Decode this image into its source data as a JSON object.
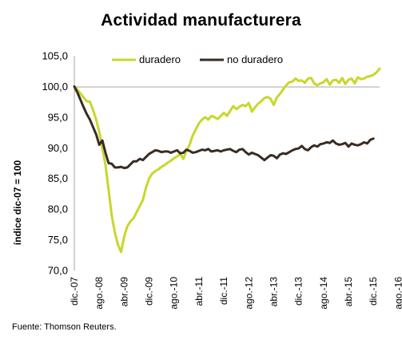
{
  "chart_data": {
    "type": "line",
    "title": "Actividad manufacturera",
    "ylabel": "índice dic-07 = 100",
    "ylim": [
      70,
      105
    ],
    "yticks": [
      "70,0",
      "75,0",
      "80,0",
      "85,0",
      "90,0",
      "95,0",
      "100,0",
      "105,0"
    ],
    "xticks": [
      "dic.-07",
      "ago.-08",
      "abr.-09",
      "dic.-09",
      "ago.-10",
      "abr.-11",
      "dic.-11",
      "ago.-12",
      "abr.-13",
      "dic.-13",
      "ago.-14",
      "abr.-15",
      "dic.-15",
      "ago.-16"
    ],
    "legend_position": "top",
    "series": [
      {
        "name": "duradero",
        "color": "#c8d72a",
        "values": [
          100.0,
          99.5,
          98.8,
          98.2,
          97.6,
          97.5,
          96.2,
          94.6,
          92.6,
          90.0,
          87.2,
          83.2,
          79.0,
          76.2,
          74.2,
          73.0,
          75.5,
          77.2,
          78.0,
          78.5,
          79.5,
          80.5,
          81.5,
          83.5,
          85.0,
          85.8,
          86.2,
          86.5,
          86.9,
          87.2,
          87.6,
          87.9,
          88.3,
          88.6,
          89.0,
          88.2,
          89.5,
          90.5,
          92.0,
          93.0,
          94.0,
          94.6,
          95.0,
          94.6,
          95.2,
          95.0,
          94.7,
          95.2,
          95.7,
          95.2,
          96.0,
          96.8,
          96.3,
          96.7,
          97.0,
          96.8,
          97.3,
          95.9,
          96.6,
          97.2,
          97.6,
          98.1,
          98.3,
          98.0,
          97.0,
          98.2,
          98.8,
          99.5,
          100.2,
          100.7,
          100.8,
          101.3,
          100.9,
          101.0,
          100.6,
          101.3,
          101.4,
          100.5,
          100.2,
          100.5,
          100.7,
          101.2,
          100.3,
          101.0,
          101.1,
          100.6,
          101.4,
          100.4,
          101.1,
          101.3,
          100.5,
          101.5,
          101.2,
          101.3,
          101.6,
          101.7,
          101.9,
          102.3,
          102.9
        ]
      },
      {
        "name": "no duradero",
        "color": "#3a2c22",
        "values": [
          100.0,
          99.0,
          97.8,
          96.6,
          95.5,
          94.6,
          93.4,
          92.2,
          90.5,
          91.2,
          89.2,
          87.5,
          87.4,
          86.8,
          86.8,
          86.9,
          86.7,
          86.8,
          87.3,
          87.8,
          87.8,
          88.2,
          88.0,
          88.5,
          89.0,
          89.3,
          89.6,
          89.5,
          89.3,
          89.4,
          89.4,
          89.2,
          89.4,
          89.6,
          89.1,
          89.2,
          89.7,
          89.5,
          89.2,
          89.3,
          89.5,
          89.7,
          89.6,
          89.8,
          89.4,
          89.5,
          89.6,
          89.4,
          89.6,
          89.7,
          89.8,
          89.5,
          89.3,
          89.7,
          89.8,
          89.3,
          88.9,
          89.2,
          89.0,
          88.8,
          88.4,
          88.0,
          88.4,
          88.8,
          88.7,
          88.3,
          88.9,
          89.1,
          89.0,
          89.3,
          89.6,
          89.8,
          89.9,
          90.3,
          89.8,
          89.6,
          90.1,
          90.4,
          90.2,
          90.6,
          90.7,
          90.9,
          90.8,
          91.2,
          90.7,
          90.5,
          90.6,
          90.8,
          90.2,
          90.7,
          90.5,
          90.4,
          90.6,
          90.9,
          90.7,
          91.3,
          91.5
        ]
      }
    ]
  },
  "source": "Fuente: Thomson Reuters."
}
